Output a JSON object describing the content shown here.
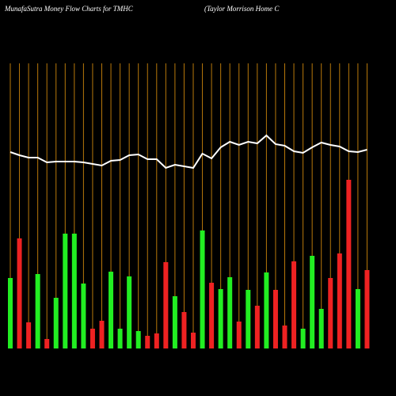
{
  "chart_data": {
    "type": "bar",
    "title": "MunafaSutra  Money Flow  Charts for TMHC",
    "subtitle": "(Taylor Morrison  Home   C",
    "ylim": [
      0,
      360
    ],
    "grid_color": "#b8780a",
    "series": [
      {
        "name": null,
        "type": "bar",
        "up_color": "#22ee22",
        "down_color": "#ee2222",
        "values": [
          89,
          139,
          33,
          94,
          12,
          64,
          145,
          145,
          82,
          25,
          35,
          97,
          25,
          91,
          22,
          16,
          19,
          109,
          66,
          46,
          20,
          149,
          83,
          75,
          90,
          34,
          74,
          54,
          96,
          74,
          29,
          110,
          25,
          117,
          50,
          89,
          120,
          213,
          75,
          99
        ],
        "up": [
          true,
          false,
          false,
          true,
          false,
          true,
          true,
          true,
          true,
          false,
          false,
          true,
          true,
          true,
          true,
          false,
          false,
          false,
          true,
          false,
          false,
          true,
          false,
          true,
          true,
          false,
          true,
          false,
          true,
          false,
          false,
          false,
          true,
          true,
          true,
          false,
          false,
          false,
          true,
          false
        ]
      },
      {
        "name": null,
        "type": "line",
        "color": "#ffffff",
        "values": [
          248,
          244,
          241,
          241,
          235,
          236,
          236,
          236,
          235,
          233,
          231,
          237,
          238,
          244,
          245,
          239,
          239,
          228,
          232,
          230,
          228,
          246,
          240,
          254,
          261,
          257,
          261,
          259,
          269,
          258,
          256,
          249,
          247,
          254,
          260,
          257,
          255,
          249,
          248,
          251
        ]
      }
    ]
  }
}
